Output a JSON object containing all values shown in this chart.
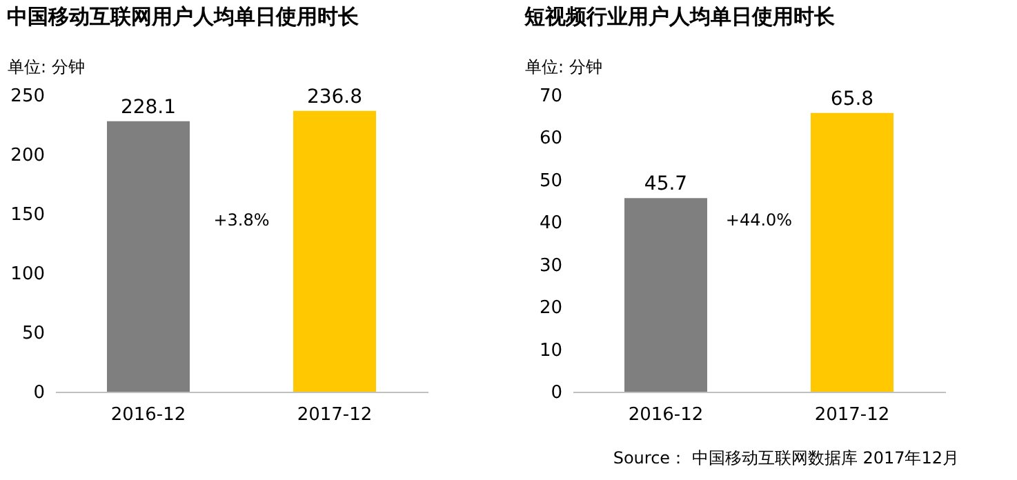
{
  "chart_data": [
    {
      "type": "bar",
      "title": "中国移动互联网用户人均单日使用时长",
      "ylabel": "单位: 分钟",
      "categories": [
        "2016-12",
        "2017-12"
      ],
      "values": [
        228.1,
        236.8
      ],
      "colors": [
        "#7f7f7f",
        "#ffc800"
      ],
      "ylim": [
        0,
        250
      ],
      "yticks": [
        0,
        50,
        100,
        150,
        200,
        250
      ],
      "data_labels": true,
      "grid": false,
      "annotations": [
        "+3.8%"
      ]
    },
    {
      "type": "bar",
      "title": "短视频行业用户人均单日使用时长",
      "ylabel": "单位: 分钟",
      "categories": [
        "2016-12",
        "2017-12"
      ],
      "values": [
        45.7,
        65.8
      ],
      "colors": [
        "#7f7f7f",
        "#ffc800"
      ],
      "ylim": [
        0,
        70
      ],
      "yticks": [
        0,
        10,
        20,
        30,
        40,
        50,
        60,
        70
      ],
      "data_labels": true,
      "grid": false,
      "annotations": [
        "+44.0%",
        "Source： 中国移动互联网数据库 2017年12月"
      ]
    }
  ]
}
